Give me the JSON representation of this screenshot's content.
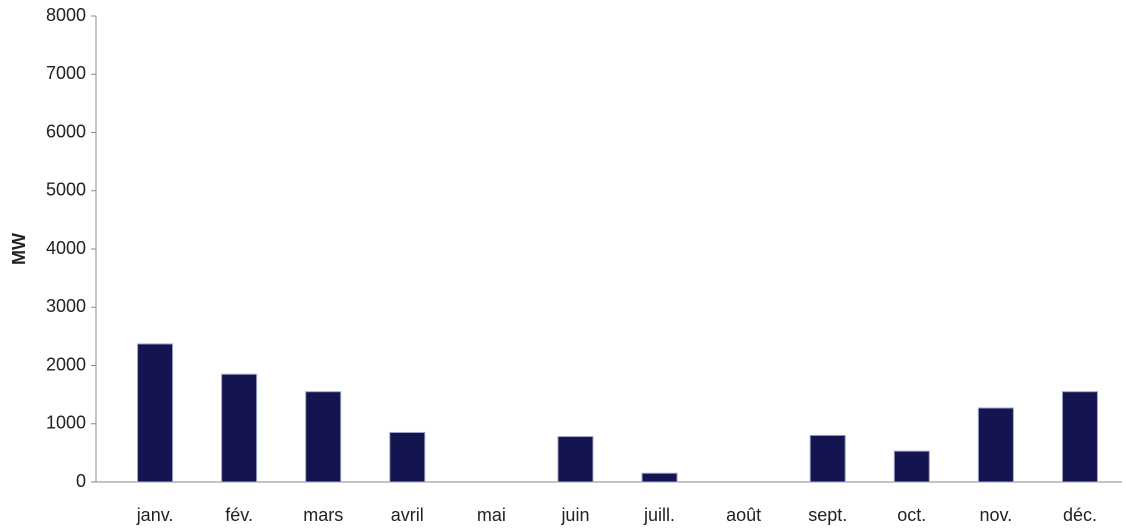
{
  "chart_data": {
    "type": "bar",
    "ylabel": "MW",
    "categories": [
      "janv.",
      "fév.",
      "mars",
      "avril",
      "mai",
      "juin",
      "juill.",
      "août",
      "sept.",
      "oct.",
      "nov.",
      "déc."
    ],
    "values": [
      2370,
      1850,
      1550,
      850,
      0,
      780,
      150,
      0,
      800,
      530,
      1270,
      1550
    ],
    "color": "#141450",
    "ylim": [
      0,
      8000
    ],
    "yticks": [
      0,
      1000,
      2000,
      3000,
      4000,
      5000,
      6000,
      7000,
      8000
    ],
    "grid": false
  }
}
